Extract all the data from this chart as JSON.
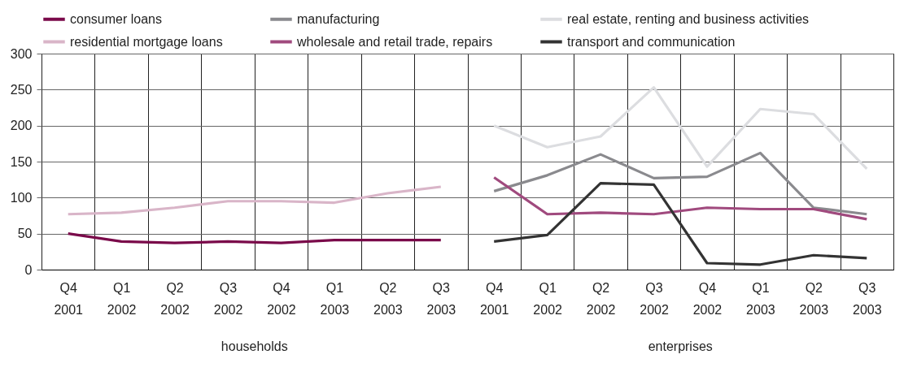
{
  "chart_data": {
    "type": "line",
    "categories": [
      "Q4 2001",
      "Q1 2002",
      "Q2 2002",
      "Q3 2002",
      "Q4 2002",
      "Q1 2003",
      "Q2 2003",
      "Q3 2003",
      "Q4 2001",
      "Q1 2002",
      "Q2 2002",
      "Q3 2002",
      "Q4 2002",
      "Q1 2003",
      "Q2 2003",
      "Q3 2003"
    ],
    "series": [
      {
        "name": "consumer loans",
        "color": "#7a0a4a",
        "values": [
          50,
          39,
          37,
          39,
          37,
          41,
          41,
          41,
          null,
          null,
          null,
          null,
          null,
          null,
          null,
          null
        ]
      },
      {
        "name": "manufacturing",
        "color": "#8a8a8e",
        "values": [
          null,
          null,
          null,
          null,
          null,
          null,
          null,
          null,
          109,
          131,
          160,
          127,
          129,
          162,
          86,
          77
        ]
      },
      {
        "name": "real estate, renting and business activities",
        "color": "#dcdde0",
        "values": [
          null,
          null,
          null,
          null,
          null,
          null,
          null,
          null,
          200,
          170,
          185,
          253,
          143,
          223,
          216,
          140
        ]
      },
      {
        "name": "residential mortgage loans",
        "color": "#d9b5c8",
        "values": [
          77,
          79,
          86,
          95,
          95,
          93,
          106,
          115,
          null,
          null,
          null,
          null,
          null,
          null,
          null,
          null
        ]
      },
      {
        "name": "wholesale and retail trade, repairs",
        "color": "#a04a7e",
        "values": [
          null,
          null,
          null,
          null,
          null,
          null,
          null,
          null,
          128,
          77,
          79,
          77,
          86,
          84,
          84,
          70
        ]
      },
      {
        "name": "transport and communication",
        "color": "#333333",
        "values": [
          null,
          null,
          null,
          null,
          null,
          null,
          null,
          null,
          39,
          48,
          120,
          118,
          9,
          7,
          20,
          16
        ]
      }
    ],
    "ylim": [
      0,
      300
    ],
    "yticks": [
      0,
      50,
      100,
      150,
      200,
      250,
      300
    ],
    "grid": true,
    "legend": "top",
    "line_style": "solid",
    "annotations": [
      "households",
      "enterprises"
    ]
  }
}
